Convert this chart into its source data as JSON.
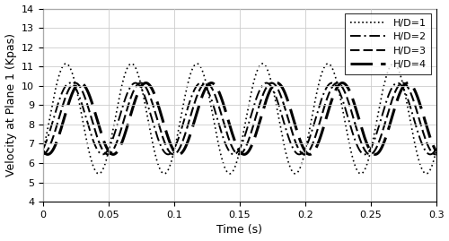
{
  "xlabel": "Time (s)",
  "ylabel": "Velocity at Plane 1 (Kpas)",
  "xlim": [
    0,
    0.3
  ],
  "ylim": [
    4,
    14
  ],
  "yticks": [
    4,
    5,
    6,
    7,
    8,
    9,
    10,
    11,
    12,
    13,
    14
  ],
  "xticks": [
    0,
    0.05,
    0.1,
    0.15,
    0.2,
    0.25,
    0.3
  ],
  "xtick_labels": [
    "0",
    "0.05",
    "0.1",
    "0.15",
    "0.2",
    "0.25",
    "0.3"
  ],
  "background_color": "#ffffff",
  "grid_color": "#cccccc",
  "figsize": [
    5.0,
    2.69
  ],
  "dpi": 100,
  "frequency": 20.0,
  "series": [
    {
      "label": "H/D=1",
      "mean": 8.3,
      "amplitude": 2.85,
      "phase_shift": 0.005,
      "ls": "dotted",
      "lw": 1.2,
      "color": "#000000"
    },
    {
      "label": "H/D=2",
      "mean": 8.3,
      "amplitude": 1.85,
      "phase_shift": 0.008,
      "ls": "dashdot_custom",
      "lw": 1.4,
      "color": "#000000"
    },
    {
      "label": "H/D=3",
      "mean": 8.3,
      "amplitude": 1.85,
      "phase_shift": 0.012,
      "ls": "dashed_medium",
      "lw": 1.5,
      "color": "#000000"
    },
    {
      "label": "H/D=4",
      "mean": 8.3,
      "amplitude": 1.85,
      "phase_shift": 0.016,
      "ls": "dashed_long",
      "lw": 2.2,
      "color": "#000000"
    }
  ]
}
